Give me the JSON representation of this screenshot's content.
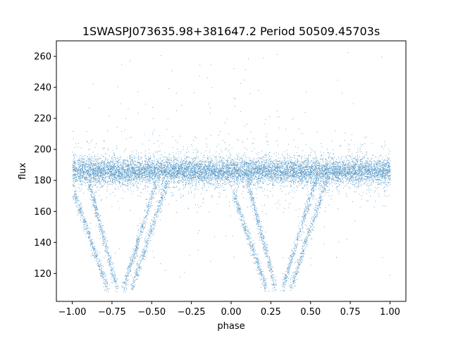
{
  "chart_data": {
    "type": "scatter",
    "title": "1SWASPJ073635.98+381647.2 Period 50509.45703s",
    "xlabel": "phase",
    "ylabel": "flux",
    "xlim": [
      -1.1,
      1.1
    ],
    "ylim": [
      102,
      270
    ],
    "xticks": [
      -1.0,
      -0.75,
      -0.5,
      -0.25,
      0.0,
      0.25,
      0.5,
      0.75,
      1.0
    ],
    "xtick_labels": [
      "−1.00",
      "−0.75",
      "−0.50",
      "−0.25",
      "0.00",
      "0.25",
      "0.50",
      "0.75",
      "1.00"
    ],
    "yticks": [
      120,
      140,
      160,
      180,
      200,
      220,
      240,
      260
    ],
    "ytick_labels": [
      "120",
      "140",
      "160",
      "180",
      "200",
      "220",
      "240",
      "260"
    ],
    "grid": false,
    "point_color": "#1f77b4",
    "baseline_flux": 186,
    "phase_range": [
      -1.0,
      1.0
    ],
    "eclipse_tracks": [
      {
        "phase_top": -0.99,
        "flux_top": 172,
        "phase_bottom": -0.78,
        "flux_bottom": 110
      },
      {
        "phase_top": -0.9,
        "flux_top": 180,
        "phase_bottom": -0.72,
        "flux_bottom": 110
      },
      {
        "phase_top": -0.47,
        "flux_top": 180,
        "phase_bottom": -0.68,
        "flux_bottom": 110
      },
      {
        "phase_top": -0.4,
        "flux_top": 180,
        "phase_bottom": -0.63,
        "flux_bottom": 110
      },
      {
        "phase_top": 0.01,
        "flux_top": 172,
        "phase_bottom": 0.22,
        "flux_bottom": 110
      },
      {
        "phase_top": 0.1,
        "flux_top": 180,
        "phase_bottom": 0.28,
        "flux_bottom": 110
      },
      {
        "phase_top": 0.53,
        "flux_top": 180,
        "phase_bottom": 0.32,
        "flux_bottom": 110
      },
      {
        "phase_top": 0.6,
        "flux_top": 180,
        "phase_bottom": 0.37,
        "flux_bottom": 110
      }
    ]
  }
}
